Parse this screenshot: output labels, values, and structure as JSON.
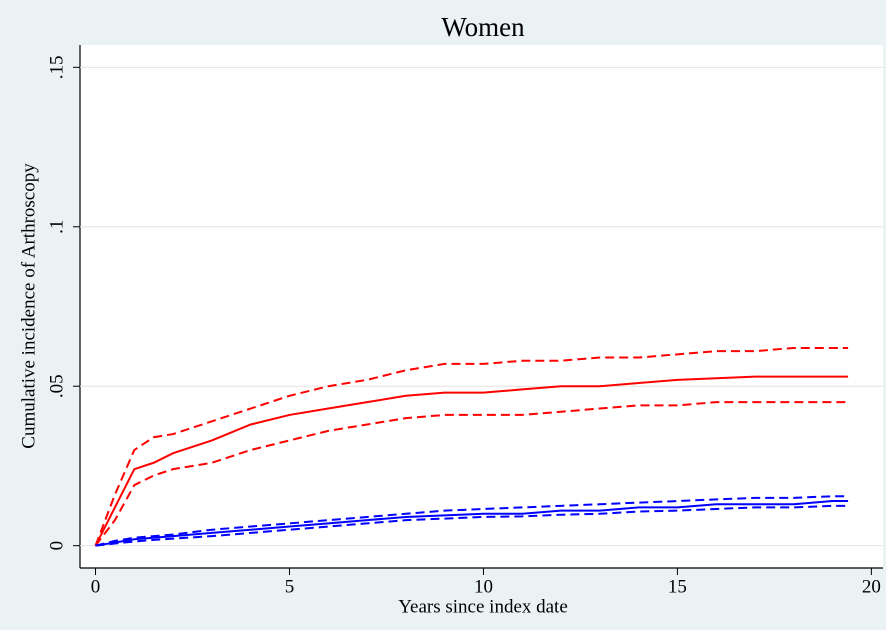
{
  "chart_data": {
    "type": "line",
    "title": "Women",
    "x_label": "Years since index date",
    "y_label": "Cumulative incidence of Arthroscopy",
    "x": [
      0,
      0.5,
      1,
      1.5,
      2,
      3,
      4,
      5,
      6,
      7,
      8,
      9,
      10,
      11,
      12,
      13,
      14,
      15,
      16,
      17,
      18,
      19,
      19.4
    ],
    "series": [
      {
        "color": "#ff0000",
        "style": "solid",
        "values": [
          0,
          0.012,
          0.024,
          0.026,
          0.029,
          0.033,
          0.038,
          0.041,
          0.043,
          0.045,
          0.047,
          0.048,
          0.048,
          0.049,
          0.05,
          0.05,
          0.051,
          0.052,
          0.0525,
          0.053,
          0.053,
          0.053,
          0.053
        ]
      },
      {
        "color": "#ff0000",
        "style": "dashed",
        "values": [
          0,
          0.016,
          0.03,
          0.034,
          0.035,
          0.039,
          0.043,
          0.047,
          0.05,
          0.052,
          0.055,
          0.057,
          0.057,
          0.058,
          0.058,
          0.059,
          0.059,
          0.06,
          0.061,
          0.061,
          0.062,
          0.062,
          0.062
        ]
      },
      {
        "color": "#ff0000",
        "style": "dashed",
        "values": [
          0,
          0.008,
          0.019,
          0.022,
          0.024,
          0.026,
          0.03,
          0.033,
          0.036,
          0.038,
          0.04,
          0.041,
          0.041,
          0.041,
          0.042,
          0.043,
          0.044,
          0.044,
          0.045,
          0.045,
          0.045,
          0.045,
          0.045
        ]
      },
      {
        "color": "#0000ff",
        "style": "solid",
        "values": [
          0,
          0.001,
          0.002,
          0.0025,
          0.003,
          0.004,
          0.005,
          0.006,
          0.007,
          0.008,
          0.009,
          0.0095,
          0.01,
          0.01,
          0.011,
          0.011,
          0.012,
          0.012,
          0.013,
          0.013,
          0.013,
          0.014,
          0.014
        ]
      },
      {
        "color": "#0000ff",
        "style": "dashed",
        "values": [
          0,
          0.0015,
          0.0025,
          0.003,
          0.0035,
          0.005,
          0.006,
          0.007,
          0.008,
          0.009,
          0.01,
          0.011,
          0.0115,
          0.012,
          0.0125,
          0.013,
          0.0135,
          0.014,
          0.0145,
          0.015,
          0.015,
          0.0155,
          0.0155
        ]
      },
      {
        "color": "#0000ff",
        "style": "dashed",
        "values": [
          0,
          0.0007,
          0.0013,
          0.0018,
          0.0022,
          0.003,
          0.004,
          0.005,
          0.006,
          0.007,
          0.008,
          0.0085,
          0.009,
          0.0092,
          0.0097,
          0.01,
          0.0107,
          0.011,
          0.0115,
          0.012,
          0.012,
          0.0125,
          0.0125
        ]
      }
    ],
    "xlim": [
      -0.4,
      20.3
    ],
    "ylim": [
      -0.007,
      0.157
    ],
    "xticks": [
      0,
      5,
      10,
      15,
      20
    ],
    "yticks": [
      0,
      {
        "value": 0.05,
        "label": ".05"
      },
      {
        "value": 0.1,
        "label": ".1"
      },
      {
        "value": 0.15,
        "label": ".15"
      }
    ],
    "grid": true
  }
}
